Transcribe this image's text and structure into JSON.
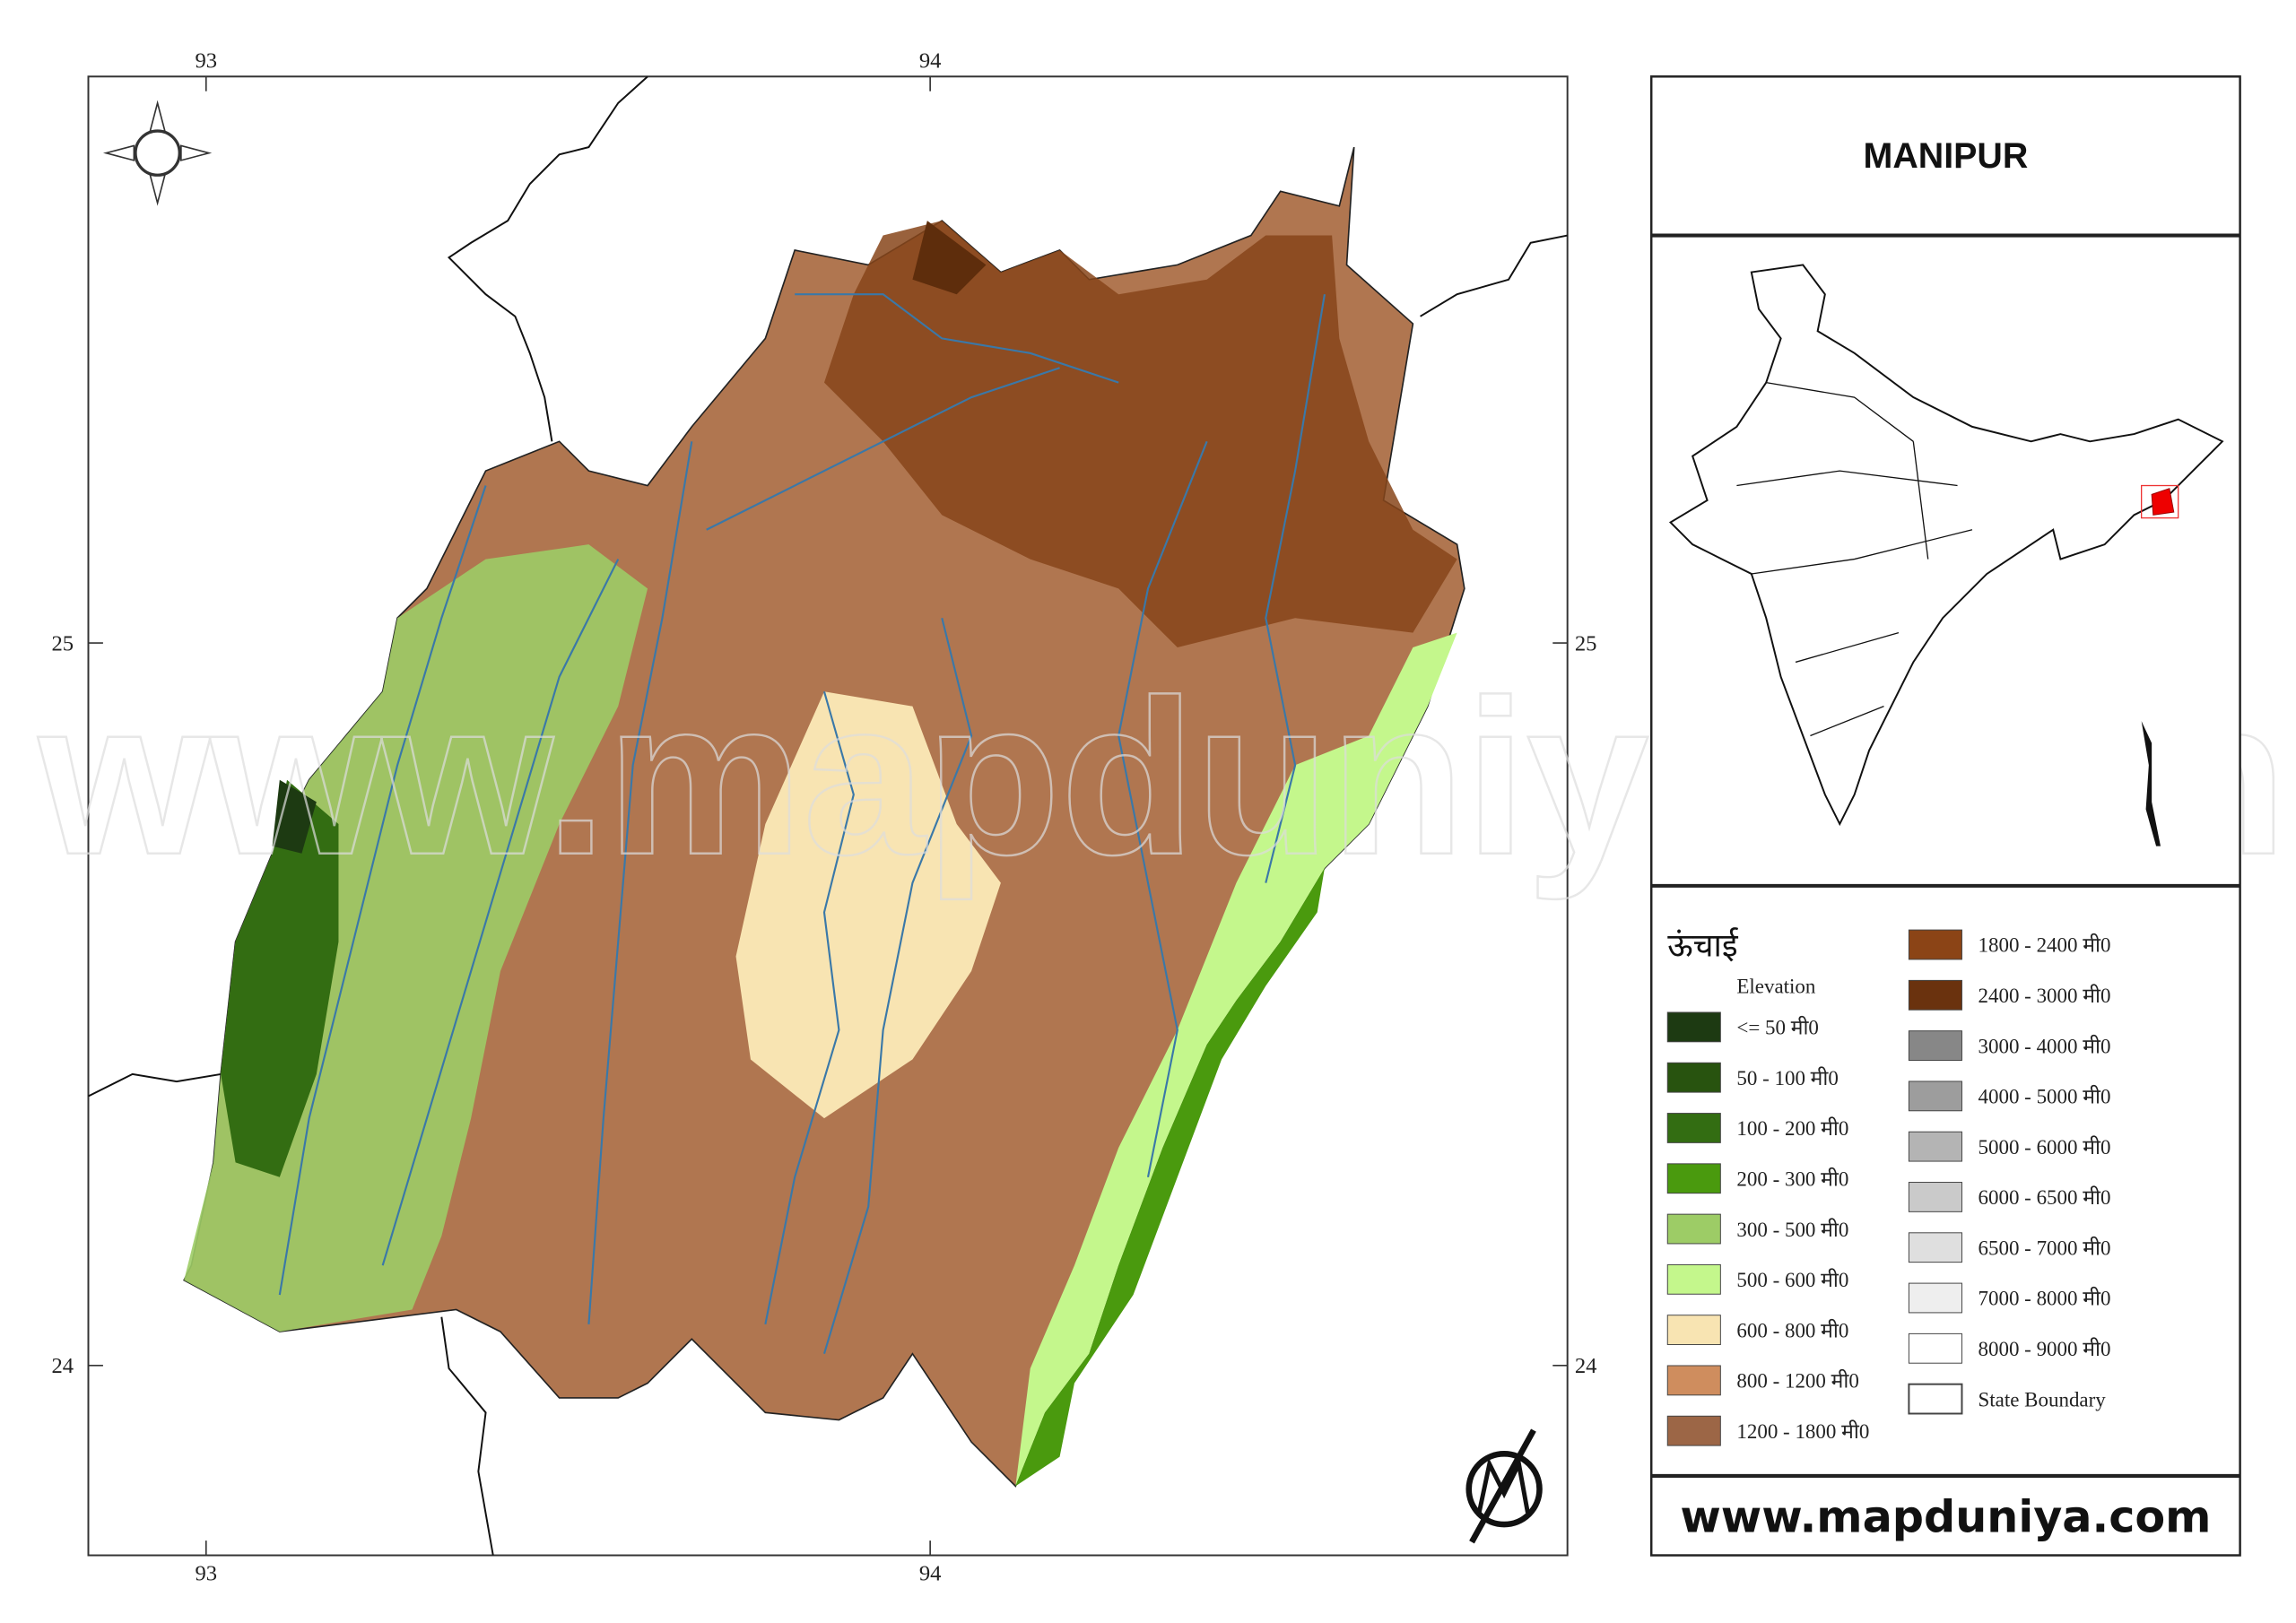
{
  "map": {
    "title": "MANIPUR",
    "lon_labels": [
      "93",
      "94"
    ],
    "lat_labels": [
      "25",
      "24"
    ],
    "legend": {
      "heading": "ऊंचाई",
      "subheading": "Elevation",
      "items": [
        {
          "label": "<= 50 मी0",
          "color": "#1d3a12"
        },
        {
          "label": "50 - 100 मी0",
          "color": "#28530f"
        },
        {
          "label": "100 - 200 मी0",
          "color": "#336d12"
        },
        {
          "label": "200 - 300 मी0",
          "color": "#4a9a0e"
        },
        {
          "label": "300 - 500 मी0",
          "color": "#9dcc66"
        },
        {
          "label": "500 - 600 मी0",
          "color": "#c4f78c"
        },
        {
          "label": "600 - 800 मी0",
          "color": "#f8e4b2"
        },
        {
          "label": "800 - 1200 मी0",
          "color": "#cf8d5e"
        },
        {
          "label": "1200 - 1800 मी0",
          "color": "#9c6646"
        },
        {
          "label": "1800 - 2400 मी0",
          "color": "#8b4416"
        },
        {
          "label": "2400 - 3000 मी0",
          "color": "#6a320e"
        },
        {
          "label": "3000 - 4000 मी0",
          "color": "#878787"
        },
        {
          "label": "4000 - 5000 मी0",
          "color": "#9d9d9d"
        },
        {
          "label": "5000 - 6000 मी0",
          "color": "#b4b4b4"
        },
        {
          "label": "6000 - 6500 मी0",
          "color": "#cacaca"
        },
        {
          "label": "6500 - 7000 मी0",
          "color": "#dfdfdf"
        },
        {
          "label": "7000 - 8000 मी0",
          "color": "#eeeeee"
        },
        {
          "label": "8000 - 9000 मी0",
          "color": "#ffffff"
        },
        {
          "label": "State Boundary",
          "color": "#ffffff"
        }
      ]
    },
    "website": "www.mapduniya.com"
  }
}
